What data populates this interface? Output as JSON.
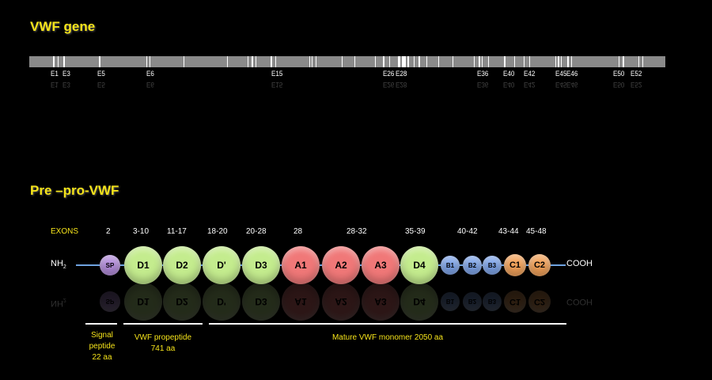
{
  "gene": {
    "title": "VWF gene",
    "exons": [
      {
        "label": "E1"
      },
      {
        "label": "E3"
      },
      {
        "label": "E5"
      },
      {
        "label": "E6"
      },
      {
        "label": "E15"
      },
      {
        "label": "E26"
      },
      {
        "label": "E28"
      },
      {
        "label": "E36"
      },
      {
        "label": "E40"
      },
      {
        "label": "E42"
      },
      {
        "label": "E45"
      },
      {
        "label": "E46"
      },
      {
        "label": "E50"
      },
      {
        "label": "E52"
      }
    ]
  },
  "protein": {
    "title": "Pre –pro-VWF",
    "exons_label": "EXONS",
    "n_terminus": "NH",
    "n_sub": "2",
    "c_terminus": "COOH",
    "exon_ranges": [
      "2",
      "3-10",
      "11-17",
      "18-20",
      "20-28",
      "28",
      "28-32",
      "35-39",
      "40-42",
      "43-44",
      "45-48"
    ],
    "domains": [
      {
        "label": "SP",
        "color": "#b48ddc"
      },
      {
        "label": "D1",
        "color": "#c4ec8e"
      },
      {
        "label": "D2",
        "color": "#c4ec8e"
      },
      {
        "label": "D'",
        "color": "#c4ec8e"
      },
      {
        "label": "D3",
        "color": "#c4ec8e"
      },
      {
        "label": "A1",
        "color": "#f07878"
      },
      {
        "label": "A2",
        "color": "#f07878"
      },
      {
        "label": "A3",
        "color": "#f07878"
      },
      {
        "label": "D4",
        "color": "#c4ec8e"
      },
      {
        "label": "B1",
        "color": "#7fa6ec"
      },
      {
        "label": "B2",
        "color": "#7fa6ec"
      },
      {
        "label": "B3",
        "color": "#7fa6ec"
      },
      {
        "label": "C1",
        "color": "#f4a35a"
      },
      {
        "label": "C2",
        "color": "#f4a35a"
      }
    ],
    "signal_peptide": [
      "Signal",
      "peptide",
      "22 aa"
    ],
    "propeptide": [
      "VWF propeptide",
      "741 aa"
    ],
    "mature": "Mature VWF monomer  2050 aa"
  }
}
